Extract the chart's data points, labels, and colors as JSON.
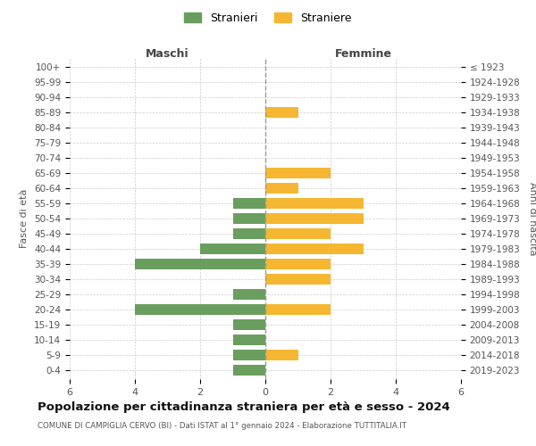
{
  "age_groups": [
    "100+",
    "95-99",
    "90-94",
    "85-89",
    "80-84",
    "75-79",
    "70-74",
    "65-69",
    "60-64",
    "55-59",
    "50-54",
    "45-49",
    "40-44",
    "35-39",
    "30-34",
    "25-29",
    "20-24",
    "15-19",
    "10-14",
    "5-9",
    "0-4"
  ],
  "birth_years": [
    "≤ 1923",
    "1924-1928",
    "1929-1933",
    "1934-1938",
    "1939-1943",
    "1944-1948",
    "1949-1953",
    "1954-1958",
    "1959-1963",
    "1964-1968",
    "1969-1973",
    "1974-1978",
    "1979-1983",
    "1984-1988",
    "1989-1993",
    "1994-1998",
    "1999-2003",
    "2004-2008",
    "2009-2013",
    "2014-2018",
    "2019-2023"
  ],
  "males": [
    0,
    0,
    0,
    0,
    0,
    0,
    0,
    0,
    0,
    1,
    1,
    1,
    2,
    4,
    0,
    1,
    4,
    1,
    1,
    1,
    1
  ],
  "females": [
    0,
    0,
    0,
    1,
    0,
    0,
    0,
    2,
    1,
    3,
    3,
    2,
    3,
    2,
    2,
    0,
    2,
    0,
    0,
    1,
    0
  ],
  "male_color": "#6a9e5f",
  "female_color": "#f5b731",
  "male_label": "Stranieri",
  "female_label": "Straniere",
  "title": "Popolazione per cittadinanza straniera per età e sesso - 2024",
  "subtitle": "COMUNE DI CAMPIGLIA CERVO (BI) - Dati ISTAT al 1° gennaio 2024 - Elaborazione TUTTITALIA.IT",
  "xlabel_left": "Maschi",
  "xlabel_right": "Femmine",
  "ylabel_left": "Fasce di età",
  "ylabel_right": "Anni di nascita",
  "xlim": 6,
  "background_color": "#ffffff",
  "grid_color": "#cccccc"
}
